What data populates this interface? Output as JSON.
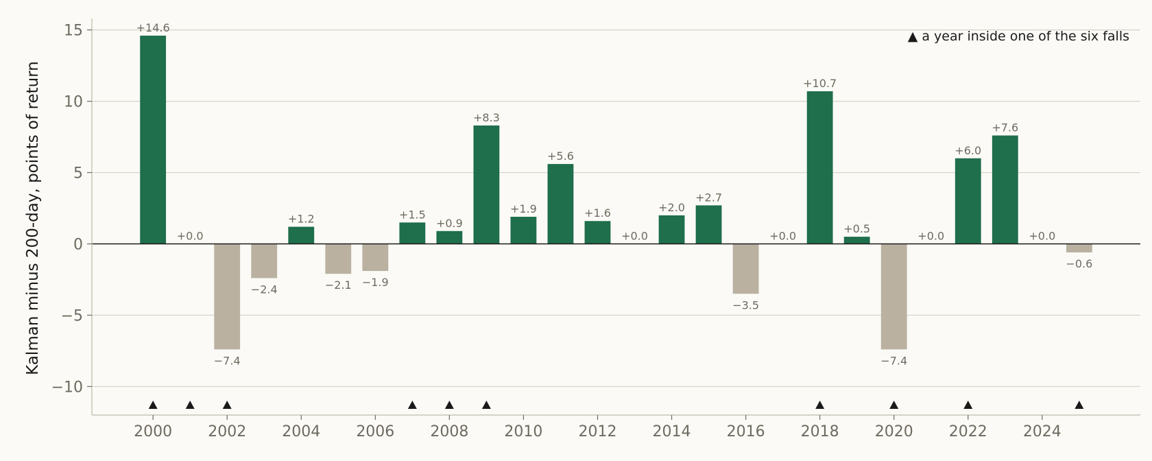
{
  "chart_data": {
    "type": "bar",
    "ylabel": "Kalman minus 200-day, points of return",
    "xlabel": "",
    "title": "",
    "ylim": [
      -12,
      15.8
    ],
    "xlim": [
      1998.35,
      2026.65
    ],
    "y_ticks": [
      -10,
      -5,
      0,
      5,
      10,
      15
    ],
    "y_tick_labels": [
      "−10",
      "−5",
      "0",
      "5",
      "10",
      "15"
    ],
    "x_ticks": [
      2000,
      2002,
      2004,
      2006,
      2008,
      2010,
      2012,
      2014,
      2016,
      2018,
      2020,
      2022,
      2024
    ],
    "x_tick_labels": [
      "2000",
      "2002",
      "2004",
      "2006",
      "2008",
      "2010",
      "2012",
      "2014",
      "2016",
      "2018",
      "2020",
      "2022",
      "2024"
    ],
    "grid": "horizontal",
    "years": [
      2000,
      2001,
      2002,
      2003,
      2004,
      2005,
      2006,
      2007,
      2008,
      2009,
      2010,
      2011,
      2012,
      2013,
      2014,
      2015,
      2016,
      2017,
      2018,
      2019,
      2020,
      2021,
      2022,
      2023,
      2024,
      2025
    ],
    "values": [
      14.6,
      0.0,
      -7.4,
      -2.4,
      1.2,
      -2.1,
      -1.9,
      1.5,
      0.9,
      8.3,
      1.9,
      5.6,
      1.6,
      0.0,
      2.0,
      2.7,
      -3.5,
      0.0,
      10.7,
      0.5,
      -7.4,
      0.0,
      6.0,
      7.6,
      0.0,
      -0.6
    ],
    "value_labels": [
      "+14.6",
      "+0.0",
      "−7.4",
      "−2.4",
      "+1.2",
      "−2.1",
      "−1.9",
      "+1.5",
      "+0.9",
      "+8.3",
      "+1.9",
      "+5.6",
      "+1.6",
      "+0.0",
      "+2.0",
      "+2.7",
      "−3.5",
      "+0.0",
      "+10.7",
      "+0.5",
      "−7.4",
      "+0.0",
      "+6.0",
      "+7.6",
      "+0.0",
      "−0.6"
    ],
    "fall_years": [
      2000,
      2001,
      2002,
      2007,
      2008,
      2009,
      2018,
      2020,
      2022,
      2025
    ],
    "legend": {
      "marker": "▲",
      "text": "a year inside one of the six falls",
      "placement": "top-right"
    },
    "colors": {
      "positive": "#1f6e4c",
      "negative": "#bab1a1",
      "marker": "#1a1a1a",
      "grid": "#d6d3c6",
      "zero_line": "#1a1a1a",
      "axis": "#c9c5b7",
      "background": "#fbfaf6"
    }
  }
}
